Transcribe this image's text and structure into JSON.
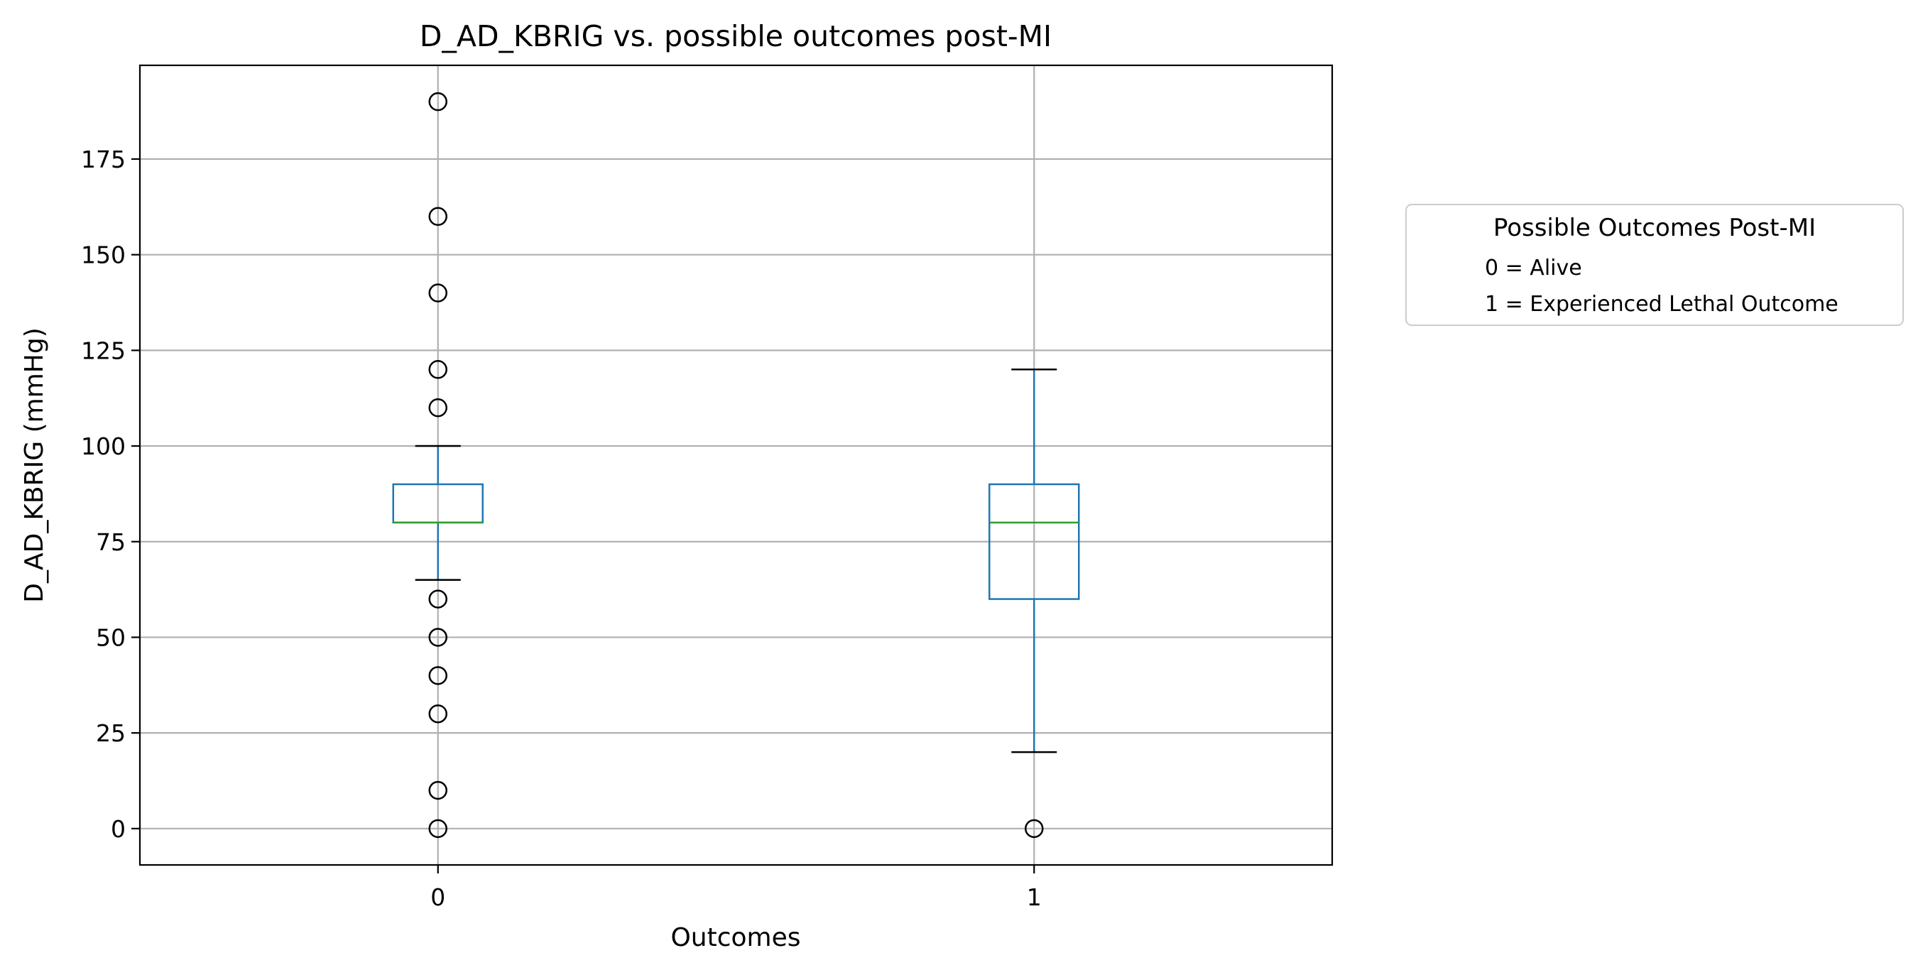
{
  "chart_data": {
    "type": "box",
    "title": "D_AD_KBRIG vs. possible outcomes post-MI",
    "xlabel": "Outcomes",
    "ylabel": "D_AD_KBRIG (mmHg)",
    "ylim": [
      -9.5,
      199.5
    ],
    "yticks": [
      0,
      25,
      50,
      75,
      100,
      125,
      150,
      175
    ],
    "grid": true,
    "categories": [
      "0",
      "1"
    ],
    "boxes": [
      {
        "category": "0",
        "whisker_low": 65,
        "q1": 80,
        "median": 80,
        "q3": 90,
        "whisker_high": 100,
        "outliers": [
          0,
          10,
          30,
          40,
          50,
          60,
          110,
          120,
          140,
          160,
          190
        ]
      },
      {
        "category": "1",
        "whisker_low": 20,
        "q1": 60,
        "median": 80,
        "q3": 90,
        "whisker_high": 120,
        "outliers": [
          0
        ]
      }
    ],
    "legend": {
      "title": "Possible Outcomes Post-MI",
      "entries": [
        "0 = Alive",
        "1 = Experienced Lethal Outcome"
      ],
      "placement": "outside right, upper"
    },
    "colors": {
      "box": "#1f77b4",
      "median": "#2ca02c",
      "whisker_cap": "#000000",
      "grid": "#b0b0b0",
      "outlier": "#000000"
    }
  }
}
